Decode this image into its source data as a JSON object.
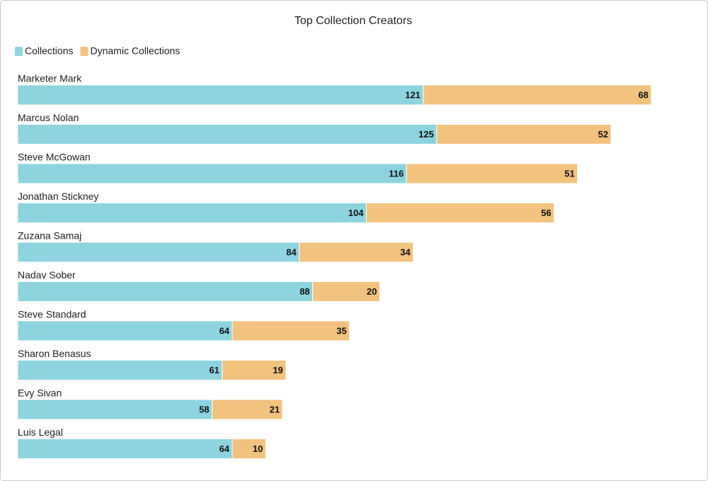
{
  "chart_data": {
    "type": "stacked-hbar",
    "title": "Top Collection Creators",
    "categories": [
      "Marketer Mark",
      "Marcus Nolan",
      "Steve McGowan",
      "Jonathan Stickney",
      "Zuzana Samaj",
      "Nadav Sober",
      "Steve Standard",
      "Sharon Benasus",
      "Evy Sivan",
      "Luis Legal"
    ],
    "series": [
      {
        "name": "Collections",
        "color": "#8dd4df",
        "values": [
          121,
          125,
          116,
          104,
          84,
          88,
          64,
          61,
          58,
          64
        ]
      },
      {
        "name": "Dynamic Collections",
        "color": "#f2c27f",
        "values": [
          68,
          52,
          51,
          56,
          34,
          20,
          35,
          19,
          21,
          10
        ]
      }
    ],
    "xlim": [
      0,
      200
    ],
    "legend": "top-left"
  }
}
